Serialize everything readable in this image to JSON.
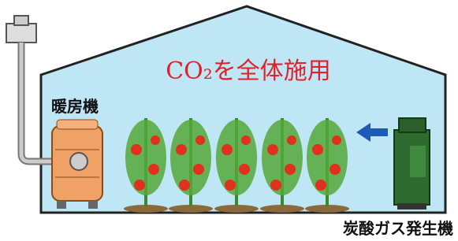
{
  "title": "CO₂を全体施用",
  "heater_label": "暖房機",
  "generator_label": "炭酸ガス発生機"
}
